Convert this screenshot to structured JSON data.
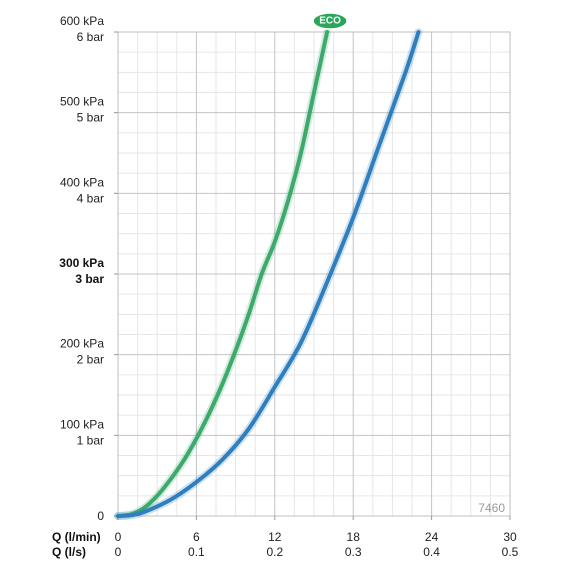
{
  "chart_data": {
    "type": "line",
    "title": "",
    "xlabel": "Q (l/min)",
    "xlabel_secondary": "Q (l/s)",
    "ylabel": "",
    "xlim": [
      0,
      30
    ],
    "ylim": [
      0,
      600
    ],
    "grid": true,
    "x_ticks_lmin": [
      "0",
      "6",
      "12",
      "18",
      "24",
      "30"
    ],
    "x_ticks_ls": [
      "0",
      "0.1",
      "0.2",
      "0.3",
      "0.4",
      "0.5"
    ],
    "y_ticks": [
      {
        "value": 0,
        "kpa": "0",
        "bar": ""
      },
      {
        "value": 100,
        "kpa": "100 kPa",
        "bar": "1 bar"
      },
      {
        "value": 200,
        "kpa": "200 kPa",
        "bar": "2 bar"
      },
      {
        "value": 300,
        "kpa": "300 kPa",
        "bar": "3 bar"
      },
      {
        "value": 400,
        "kpa": "400 kPa",
        "bar": "4 bar"
      },
      {
        "value": 500,
        "kpa": "500 kPa",
        "bar": "5 bar"
      },
      {
        "value": 600,
        "kpa": "600 kPa",
        "bar": "6 bar"
      }
    ],
    "series": [
      {
        "name": "ECO",
        "color": "#3daa6c",
        "x": [
          0,
          1,
          2,
          3,
          4,
          5,
          6,
          7,
          8,
          9,
          10,
          11,
          12,
          13,
          14,
          15,
          16
        ],
        "y": [
          0,
          2,
          10,
          25,
          45,
          68,
          96,
          128,
          164,
          205,
          250,
          300,
          340,
          390,
          450,
          525,
          600
        ]
      },
      {
        "name": "",
        "color": "#2f7fbf",
        "x": [
          0,
          1,
          2,
          4,
          6,
          8,
          10,
          12,
          14,
          16,
          18,
          20,
          22,
          23
        ],
        "y": [
          0,
          1,
          5,
          20,
          42,
          70,
          108,
          160,
          215,
          290,
          370,
          460,
          550,
          600
        ]
      }
    ],
    "eco_badge": "ECO",
    "code": "7460"
  }
}
